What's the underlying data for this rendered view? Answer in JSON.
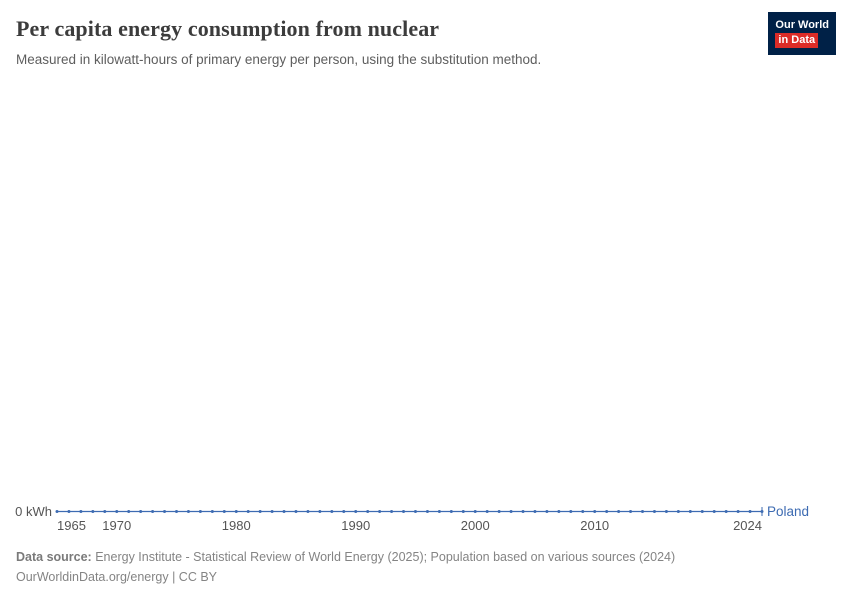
{
  "header": {
    "title": "Per capita energy consumption from nuclear",
    "subtitle": "Measured in kilowatt-hours of primary energy per person, using the substitution method.",
    "logo": {
      "line1": "Our World",
      "line2": "in Data"
    }
  },
  "chart": {
    "y_zero_label": "0 kWh",
    "entity_label": "Poland"
  },
  "chart_data": {
    "type": "line",
    "title": "Per capita energy consumption from nuclear",
    "subtitle": "Measured in kilowatt-hours of primary energy per person, using the substitution method.",
    "xlabel": "",
    "ylabel": "",
    "ylim": [
      0,
      0
    ],
    "grid": false,
    "legend_position": "end-of-line-label",
    "x_ticks": [
      1965,
      1970,
      1980,
      1990,
      2000,
      2010,
      2024
    ],
    "y_zero_label": "0 kWh",
    "series": [
      {
        "name": "Poland",
        "color": "#3d6bb2",
        "x": [
          1965,
          1966,
          1967,
          1968,
          1969,
          1970,
          1971,
          1972,
          1973,
          1974,
          1975,
          1976,
          1977,
          1978,
          1979,
          1980,
          1981,
          1982,
          1983,
          1984,
          1985,
          1986,
          1987,
          1988,
          1989,
          1990,
          1991,
          1992,
          1993,
          1994,
          1995,
          1996,
          1997,
          1998,
          1999,
          2000,
          2001,
          2002,
          2003,
          2004,
          2005,
          2006,
          2007,
          2008,
          2009,
          2010,
          2011,
          2012,
          2013,
          2014,
          2015,
          2016,
          2017,
          2018,
          2019,
          2020,
          2021,
          2022,
          2023,
          2024
        ],
        "values": [
          0,
          0,
          0,
          0,
          0,
          0,
          0,
          0,
          0,
          0,
          0,
          0,
          0,
          0,
          0,
          0,
          0,
          0,
          0,
          0,
          0,
          0,
          0,
          0,
          0,
          0,
          0,
          0,
          0,
          0,
          0,
          0,
          0,
          0,
          0,
          0,
          0,
          0,
          0,
          0,
          0,
          0,
          0,
          0,
          0,
          0,
          0,
          0,
          0,
          0,
          0,
          0,
          0,
          0,
          0,
          0,
          0,
          0,
          0,
          0
        ]
      }
    ]
  },
  "footer": {
    "source_label": "Data source:",
    "source_text": "Energy Institute - Statistical Review of World Energy (2025); Population based on various sources (2024)",
    "license": "OurWorldinData.org/energy | CC BY"
  },
  "colors": {
    "line": "#3d6bb2",
    "logo_navy": "#002147",
    "logo_red": "#dd2c27",
    "title_text": "#3c3c3c",
    "muted_text": "#848484"
  }
}
